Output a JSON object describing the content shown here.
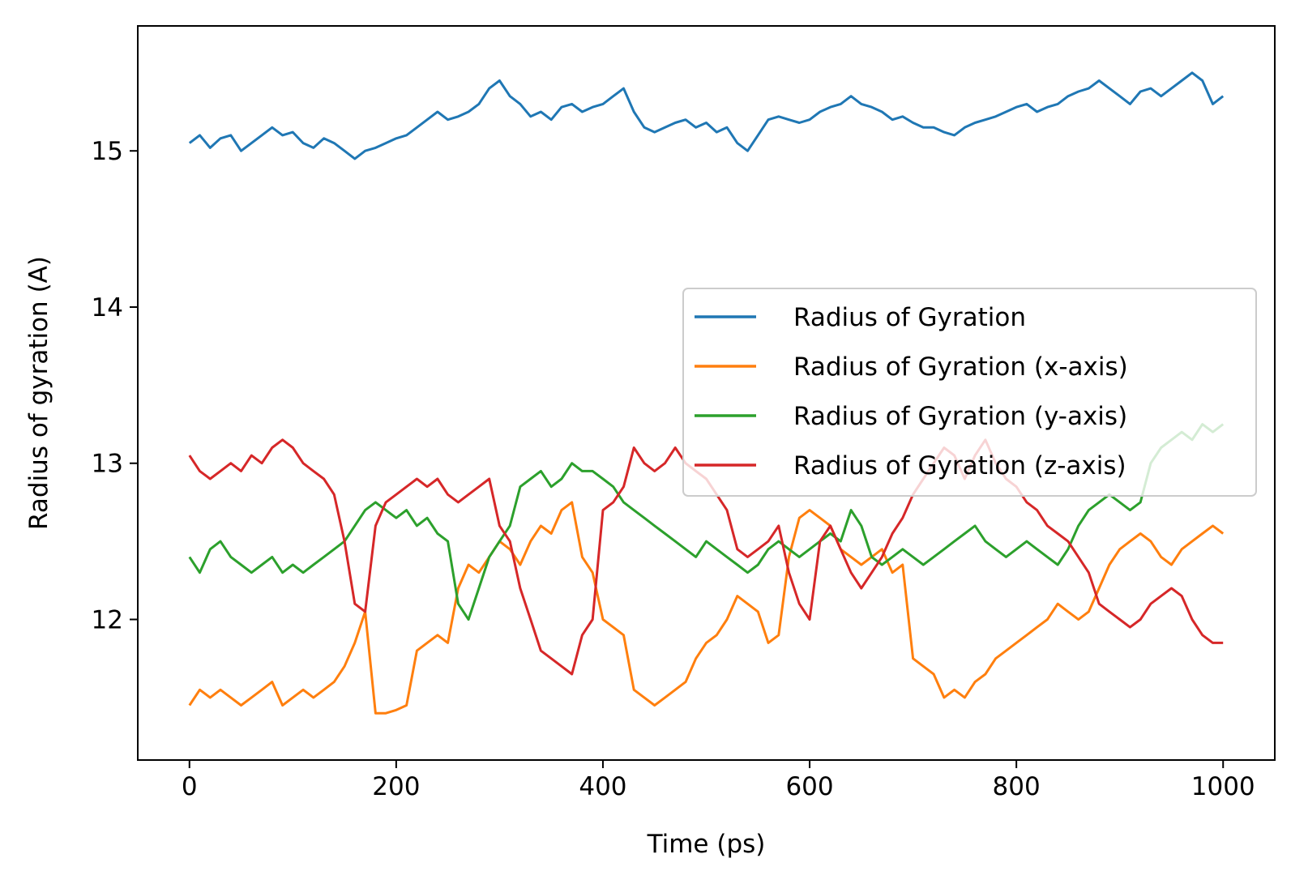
{
  "chart_data": {
    "type": "line",
    "title": "",
    "xlabel": "Time (ps)",
    "ylabel": "Radius of gyration (A)",
    "xlim": [
      -50,
      1050
    ],
    "ylim": [
      11.1,
      15.8
    ],
    "xticks": [
      0,
      200,
      400,
      600,
      800,
      1000
    ],
    "yticks": [
      12,
      13,
      14,
      15
    ],
    "grid": false,
    "legend_position": "center-right",
    "series": [
      {
        "name": "Radius of Gyration",
        "color": "#1f77b4",
        "x": [
          0,
          10,
          20,
          30,
          40,
          50,
          60,
          70,
          80,
          90,
          100,
          110,
          120,
          130,
          140,
          150,
          160,
          170,
          180,
          190,
          200,
          210,
          220,
          230,
          240,
          250,
          260,
          270,
          280,
          290,
          300,
          310,
          320,
          330,
          340,
          350,
          360,
          370,
          380,
          390,
          400,
          410,
          420,
          430,
          440,
          450,
          460,
          470,
          480,
          490,
          500,
          510,
          520,
          530,
          540,
          550,
          560,
          570,
          580,
          590,
          600,
          610,
          620,
          630,
          640,
          650,
          660,
          670,
          680,
          690,
          700,
          710,
          720,
          730,
          740,
          750,
          760,
          770,
          780,
          790,
          800,
          810,
          820,
          830,
          840,
          850,
          860,
          870,
          880,
          890,
          900,
          910,
          920,
          930,
          940,
          950,
          960,
          970,
          980,
          990,
          1000
        ],
        "y": [
          15.05,
          15.1,
          15.02,
          15.08,
          15.1,
          15.0,
          15.05,
          15.1,
          15.15,
          15.1,
          15.12,
          15.05,
          15.02,
          15.08,
          15.05,
          15.0,
          14.95,
          15.0,
          15.02,
          15.05,
          15.08,
          15.1,
          15.15,
          15.2,
          15.25,
          15.2,
          15.22,
          15.25,
          15.3,
          15.4,
          15.45,
          15.35,
          15.3,
          15.22,
          15.25,
          15.2,
          15.28,
          15.3,
          15.25,
          15.28,
          15.3,
          15.35,
          15.4,
          15.25,
          15.15,
          15.12,
          15.15,
          15.18,
          15.2,
          15.15,
          15.18,
          15.12,
          15.15,
          15.05,
          15.0,
          15.1,
          15.2,
          15.22,
          15.2,
          15.18,
          15.2,
          15.25,
          15.28,
          15.3,
          15.35,
          15.3,
          15.28,
          15.25,
          15.2,
          15.22,
          15.18,
          15.15,
          15.15,
          15.12,
          15.1,
          15.15,
          15.18,
          15.2,
          15.22,
          15.25,
          15.28,
          15.3,
          15.25,
          15.28,
          15.3,
          15.35,
          15.38,
          15.4,
          15.45,
          15.4,
          15.35,
          15.3,
          15.38,
          15.4,
          15.35,
          15.4,
          15.45,
          15.5,
          15.45,
          15.3,
          15.35
        ]
      },
      {
        "name": "Radius of Gyration (x-axis)",
        "color": "#ff7f0e",
        "x": [
          0,
          10,
          20,
          30,
          40,
          50,
          60,
          70,
          80,
          90,
          100,
          110,
          120,
          130,
          140,
          150,
          160,
          170,
          180,
          190,
          200,
          210,
          220,
          230,
          240,
          250,
          260,
          270,
          280,
          290,
          300,
          310,
          320,
          330,
          340,
          350,
          360,
          370,
          380,
          390,
          400,
          410,
          420,
          430,
          440,
          450,
          460,
          470,
          480,
          490,
          500,
          510,
          520,
          530,
          540,
          550,
          560,
          570,
          580,
          590,
          600,
          610,
          620,
          630,
          640,
          650,
          660,
          670,
          680,
          690,
          700,
          710,
          720,
          730,
          740,
          750,
          760,
          770,
          780,
          790,
          800,
          810,
          820,
          830,
          840,
          850,
          860,
          870,
          880,
          890,
          900,
          910,
          920,
          930,
          940,
          950,
          960,
          970,
          980,
          990,
          1000
        ],
        "y": [
          11.45,
          11.55,
          11.5,
          11.55,
          11.5,
          11.45,
          11.5,
          11.55,
          11.6,
          11.45,
          11.5,
          11.55,
          11.5,
          11.55,
          11.6,
          11.7,
          11.85,
          12.05,
          11.4,
          11.4,
          11.42,
          11.45,
          11.8,
          11.85,
          11.9,
          11.85,
          12.2,
          12.35,
          12.3,
          12.4,
          12.5,
          12.45,
          12.35,
          12.5,
          12.6,
          12.55,
          12.7,
          12.75,
          12.4,
          12.3,
          12.0,
          11.95,
          11.9,
          11.55,
          11.5,
          11.45,
          11.5,
          11.55,
          11.6,
          11.75,
          11.85,
          11.9,
          12.0,
          12.15,
          12.1,
          12.05,
          11.85,
          11.9,
          12.4,
          12.65,
          12.7,
          12.65,
          12.6,
          12.45,
          12.4,
          12.35,
          12.4,
          12.45,
          12.3,
          12.35,
          11.75,
          11.7,
          11.65,
          11.5,
          11.55,
          11.5,
          11.6,
          11.65,
          11.75,
          11.8,
          11.85,
          11.9,
          11.95,
          12.0,
          12.1,
          12.05,
          12.0,
          12.05,
          12.2,
          12.35,
          12.45,
          12.5,
          12.55,
          12.5,
          12.4,
          12.35,
          12.45,
          12.5,
          12.55,
          12.6,
          12.55
        ]
      },
      {
        "name": "Radius of Gyration (y-axis)",
        "color": "#2ca02c",
        "x": [
          0,
          10,
          20,
          30,
          40,
          50,
          60,
          70,
          80,
          90,
          100,
          110,
          120,
          130,
          140,
          150,
          160,
          170,
          180,
          190,
          200,
          210,
          220,
          230,
          240,
          250,
          260,
          270,
          280,
          290,
          300,
          310,
          320,
          330,
          340,
          350,
          360,
          370,
          380,
          390,
          400,
          410,
          420,
          430,
          440,
          450,
          460,
          470,
          480,
          490,
          500,
          510,
          520,
          530,
          540,
          550,
          560,
          570,
          580,
          590,
          600,
          610,
          620,
          630,
          640,
          650,
          660,
          670,
          680,
          690,
          700,
          710,
          720,
          730,
          740,
          750,
          760,
          770,
          780,
          790,
          800,
          810,
          820,
          830,
          840,
          850,
          860,
          870,
          880,
          890,
          900,
          910,
          920,
          930,
          940,
          950,
          960,
          970,
          980,
          990,
          1000
        ],
        "y": [
          12.4,
          12.3,
          12.45,
          12.5,
          12.4,
          12.35,
          12.3,
          12.35,
          12.4,
          12.3,
          12.35,
          12.3,
          12.35,
          12.4,
          12.45,
          12.5,
          12.6,
          12.7,
          12.75,
          12.7,
          12.65,
          12.7,
          12.6,
          12.65,
          12.55,
          12.5,
          12.1,
          12.0,
          12.2,
          12.4,
          12.5,
          12.6,
          12.85,
          12.9,
          12.95,
          12.85,
          12.9,
          13.0,
          12.95,
          12.95,
          12.9,
          12.85,
          12.75,
          12.7,
          12.65,
          12.6,
          12.55,
          12.5,
          12.45,
          12.4,
          12.5,
          12.45,
          12.4,
          12.35,
          12.3,
          12.35,
          12.45,
          12.5,
          12.45,
          12.4,
          12.45,
          12.5,
          12.55,
          12.5,
          12.7,
          12.6,
          12.4,
          12.35,
          12.4,
          12.45,
          12.4,
          12.35,
          12.4,
          12.45,
          12.5,
          12.55,
          12.6,
          12.5,
          12.45,
          12.4,
          12.45,
          12.5,
          12.45,
          12.4,
          12.35,
          12.45,
          12.6,
          12.7,
          12.75,
          12.8,
          12.75,
          12.7,
          12.75,
          13.0,
          13.1,
          13.15,
          13.2,
          13.15,
          13.25,
          13.2,
          13.25
        ]
      },
      {
        "name": "Radius of Gyration (z-axis)",
        "color": "#d62728",
        "x": [
          0,
          10,
          20,
          30,
          40,
          50,
          60,
          70,
          80,
          90,
          100,
          110,
          120,
          130,
          140,
          150,
          160,
          170,
          180,
          190,
          200,
          210,
          220,
          230,
          240,
          250,
          260,
          270,
          280,
          290,
          300,
          310,
          320,
          330,
          340,
          350,
          360,
          370,
          380,
          390,
          400,
          410,
          420,
          430,
          440,
          450,
          460,
          470,
          480,
          490,
          500,
          510,
          520,
          530,
          540,
          550,
          560,
          570,
          580,
          590,
          600,
          610,
          620,
          630,
          640,
          650,
          660,
          670,
          680,
          690,
          700,
          710,
          720,
          730,
          740,
          750,
          760,
          770,
          780,
          790,
          800,
          810,
          820,
          830,
          840,
          850,
          860,
          870,
          880,
          890,
          900,
          910,
          920,
          930,
          940,
          950,
          960,
          970,
          980,
          990,
          1000
        ],
        "y": [
          13.05,
          12.95,
          12.9,
          12.95,
          13.0,
          12.95,
          13.05,
          13.0,
          13.1,
          13.15,
          13.1,
          13.0,
          12.95,
          12.9,
          12.8,
          12.5,
          12.1,
          12.05,
          12.6,
          12.75,
          12.8,
          12.85,
          12.9,
          12.85,
          12.9,
          12.8,
          12.75,
          12.8,
          12.85,
          12.9,
          12.6,
          12.5,
          12.2,
          12.0,
          11.8,
          11.75,
          11.7,
          11.65,
          11.9,
          12.0,
          12.7,
          12.75,
          12.85,
          13.1,
          13.0,
          12.95,
          13.0,
          13.1,
          13.0,
          12.95,
          12.9,
          12.8,
          12.7,
          12.45,
          12.4,
          12.45,
          12.5,
          12.6,
          12.3,
          12.1,
          12.0,
          12.5,
          12.6,
          12.45,
          12.3,
          12.2,
          12.3,
          12.4,
          12.55,
          12.65,
          12.8,
          12.9,
          13.0,
          13.1,
          13.05,
          12.9,
          13.05,
          13.15,
          13.0,
          12.9,
          12.85,
          12.75,
          12.7,
          12.6,
          12.55,
          12.5,
          12.4,
          12.3,
          12.1,
          12.05,
          12.0,
          11.95,
          12.0,
          12.1,
          12.15,
          12.2,
          12.15,
          12.0,
          11.9,
          11.85,
          11.85
        ]
      }
    ]
  }
}
